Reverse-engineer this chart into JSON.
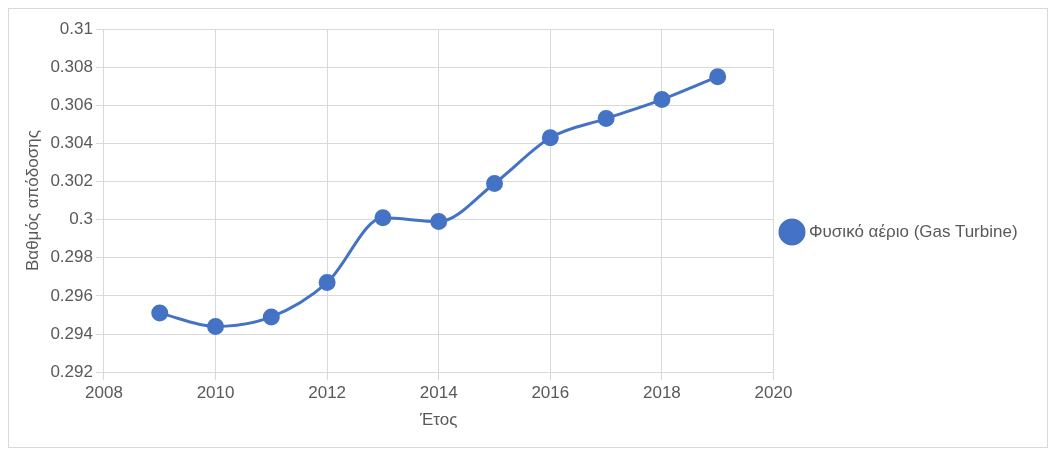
{
  "chart_data": {
    "type": "line",
    "xlabel": "Έτος",
    "ylabel": "Βαθμός απόδοσης",
    "x": [
      2009,
      2010,
      2011,
      2012,
      2013,
      2014,
      2015,
      2016,
      2017,
      2018,
      2019
    ],
    "series": [
      {
        "name": "Φυσικό αέριο (Gas Turbine)",
        "color": "#4472c4",
        "values": [
          0.2951,
          0.2944,
          0.2949,
          0.2967,
          0.3001,
          0.2999,
          0.3019,
          0.3043,
          0.3053,
          0.3063,
          0.3075
        ]
      }
    ],
    "xlim": [
      2008,
      2020
    ],
    "xticks": [
      2008,
      2010,
      2012,
      2014,
      2016,
      2018,
      2020
    ],
    "ylim": [
      0.292,
      0.31
    ],
    "yticks": [
      0.292,
      0.294,
      0.296,
      0.298,
      0.3,
      0.302,
      0.304,
      0.306,
      0.308,
      0.31
    ],
    "grid": true,
    "legend": "right",
    "marker": "circle",
    "line_style": "solid"
  }
}
